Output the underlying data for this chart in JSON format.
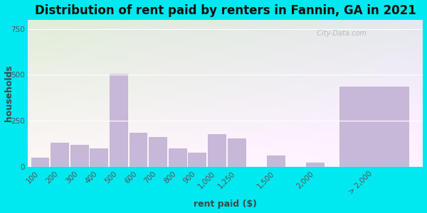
{
  "title": "Distribution of rent paid by renters in Fannin, GA in 2021",
  "xlabel": "rent paid ($)",
  "ylabel": "households",
  "bar_labels": [
    "100",
    "200",
    "300",
    "400",
    "500",
    "600",
    "700",
    "800",
    "900",
    "1,000",
    "1,250",
    "1,500",
    "2,000",
    "> 2,000"
  ],
  "bar_values": [
    50,
    130,
    120,
    100,
    505,
    185,
    160,
    100,
    75,
    175,
    155,
    60,
    20,
    435
  ],
  "x_positions": [
    0,
    1,
    2,
    3,
    4,
    5,
    6,
    7,
    8,
    9,
    10,
    12,
    14,
    17
  ],
  "bar_widths": [
    0.9,
    0.9,
    0.9,
    0.9,
    0.9,
    0.9,
    0.9,
    0.9,
    0.9,
    0.9,
    0.9,
    0.9,
    0.9,
    3.5
  ],
  "bar_color": "#c8b8d8",
  "bar_edge_color": "#b8a8cc",
  "bg_outer": "#00e8f0",
  "title_fontsize": 12,
  "axis_label_fontsize": 9,
  "tick_fontsize": 7.5,
  "yticks": [
    0,
    250,
    500,
    750
  ],
  "ylim": [
    0,
    800
  ],
  "xlim": [
    -0.6,
    19.5
  ],
  "watermark": "  City-Data.com"
}
